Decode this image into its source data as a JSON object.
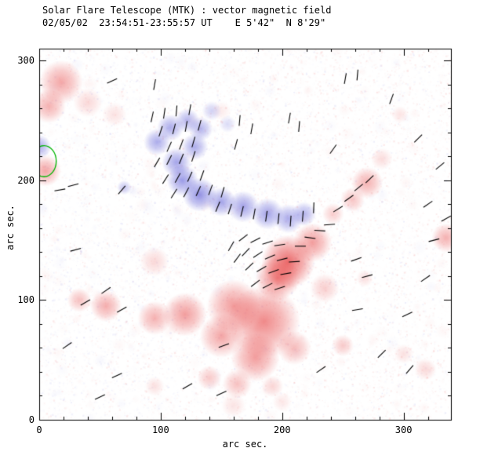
{
  "chart_data": {
    "type": "heatmap",
    "title": "Solar Flare Telescope (MTK) : vector magnetic field",
    "subtitle": "02/05/02  23:54:51-23:55:57 UT    E 5'42\"  N 8'29\"",
    "xlabel": "arc sec.",
    "ylabel": "arc sec.",
    "xlim": [
      0,
      339
    ],
    "ylim": [
      0,
      310
    ],
    "x_ticks": [
      0,
      100,
      200,
      300
    ],
    "y_ticks": [
      0,
      100,
      200,
      300
    ],
    "minor_step": 20,
    "grid": false,
    "legend": "none",
    "description": "Line-of-sight magnetogram: red blobs = positive polarity, blue blobs = negative polarity, short black segments = transverse field vectors, green contour near left edge",
    "colors": {
      "positive": "#e63c3c",
      "negative": "#5a5ad7",
      "vector": "#000000",
      "contour": "#00b400",
      "frame": "#000000",
      "background": "#ffffff"
    },
    "noise": {
      "seed": 42,
      "count": 15000,
      "red_base": 0.45,
      "red_slope": 0.35,
      "max_alpha": 0.12,
      "patches": 450,
      "patch_min_r": 3,
      "patch_max_r": 10,
      "patch_alpha": 0.05
    },
    "vector_length_arcsec": 9,
    "green_contour": {
      "cx": 4,
      "cy": 216,
      "rx": 10,
      "ry": 13
    },
    "positive_blobs": [
      [
        18,
        282,
        18,
        0.45
      ],
      [
        8,
        262,
        14,
        0.4
      ],
      [
        40,
        265,
        12,
        0.2
      ],
      [
        62,
        255,
        10,
        0.15
      ],
      [
        5,
        208,
        13,
        0.45
      ],
      [
        270,
        198,
        13,
        0.4
      ],
      [
        258,
        184,
        10,
        0.3
      ],
      [
        242,
        172,
        9,
        0.25
      ],
      [
        282,
        218,
        9,
        0.18
      ],
      [
        335,
        152,
        12,
        0.4
      ],
      [
        297,
        255,
        7,
        0.14
      ],
      [
        185,
        82,
        30,
        0.6
      ],
      [
        205,
        132,
        22,
        0.75
      ],
      [
        196,
        118,
        18,
        0.6
      ],
      [
        225,
        148,
        16,
        0.5
      ],
      [
        160,
        95,
        22,
        0.5
      ],
      [
        150,
        70,
        18,
        0.45
      ],
      [
        178,
        52,
        20,
        0.5
      ],
      [
        120,
        88,
        18,
        0.5
      ],
      [
        95,
        85,
        14,
        0.4
      ],
      [
        55,
        95,
        13,
        0.42
      ],
      [
        33,
        100,
        10,
        0.32
      ],
      [
        210,
        60,
        14,
        0.35
      ],
      [
        235,
        110,
        12,
        0.25
      ],
      [
        250,
        62,
        9,
        0.28
      ],
      [
        140,
        35,
        10,
        0.28
      ],
      [
        163,
        30,
        12,
        0.32
      ],
      [
        192,
        28,
        9,
        0.22
      ],
      [
        95,
        28,
        8,
        0.16
      ],
      [
        300,
        55,
        8,
        0.16
      ],
      [
        318,
        42,
        9,
        0.2
      ],
      [
        268,
        118,
        7,
        0.16
      ],
      [
        95,
        132,
        12,
        0.2
      ],
      [
        160,
        12,
        10,
        0.14
      ],
      [
        200,
        15,
        8,
        0.12
      ],
      [
        150,
        258,
        8,
        0.1
      ]
    ],
    "negative_blobs": [
      [
        0,
        228,
        10,
        0.5
      ],
      [
        70,
        194,
        6,
        0.35
      ],
      [
        97,
        232,
        11,
        0.5
      ],
      [
        108,
        244,
        11,
        0.5
      ],
      [
        122,
        250,
        10,
        0.45
      ],
      [
        133,
        243,
        10,
        0.45
      ],
      [
        128,
        228,
        11,
        0.5
      ],
      [
        113,
        215,
        12,
        0.55
      ],
      [
        118,
        200,
        13,
        0.6
      ],
      [
        132,
        188,
        14,
        0.65
      ],
      [
        150,
        182,
        12,
        0.55
      ],
      [
        168,
        178,
        13,
        0.55
      ],
      [
        188,
        172,
        13,
        0.55
      ],
      [
        205,
        168,
        12,
        0.5
      ],
      [
        218,
        172,
        10,
        0.45
      ],
      [
        142,
        258,
        8,
        0.28
      ],
      [
        155,
        247,
        7,
        0.22
      ]
    ],
    "vectors": [
      [
        93,
        253,
        78
      ],
      [
        103,
        256,
        82
      ],
      [
        113,
        258,
        85
      ],
      [
        124,
        259,
        80
      ],
      [
        100,
        241,
        72
      ],
      [
        111,
        243,
        76
      ],
      [
        121,
        245,
        80
      ],
      [
        132,
        246,
        75
      ],
      [
        107,
        228,
        66
      ],
      [
        117,
        230,
        70
      ],
      [
        127,
        232,
        74
      ],
      [
        97,
        215,
        60
      ],
      [
        107,
        217,
        64
      ],
      [
        117,
        218,
        68
      ],
      [
        127,
        220,
        72
      ],
      [
        104,
        201,
        58
      ],
      [
        114,
        202,
        62
      ],
      [
        124,
        203,
        66
      ],
      [
        134,
        204,
        70
      ],
      [
        111,
        189,
        58
      ],
      [
        121,
        190,
        62
      ],
      [
        131,
        191,
        66
      ],
      [
        141,
        192,
        70
      ],
      [
        151,
        190,
        74
      ],
      [
        68,
        192,
        50
      ],
      [
        162,
        230,
        75
      ],
      [
        165,
        250,
        85
      ],
      [
        175,
        243,
        80
      ],
      [
        206,
        252,
        80
      ],
      [
        214,
        245,
        85
      ],
      [
        147,
        178,
        68
      ],
      [
        157,
        176,
        72
      ],
      [
        167,
        174,
        76
      ],
      [
        177,
        172,
        80
      ],
      [
        187,
        170,
        82
      ],
      [
        197,
        168,
        84
      ],
      [
        207,
        166,
        86
      ],
      [
        217,
        170,
        86
      ],
      [
        226,
        177,
        88
      ],
      [
        168,
        152,
        38
      ],
      [
        178,
        150,
        28
      ],
      [
        188,
        148,
        18
      ],
      [
        198,
        146,
        8
      ],
      [
        170,
        140,
        48
      ],
      [
        180,
        138,
        34
      ],
      [
        190,
        136,
        24
      ],
      [
        200,
        134,
        14
      ],
      [
        210,
        132,
        4
      ],
      [
        173,
        128,
        44
      ],
      [
        183,
        126,
        30
      ],
      [
        193,
        124,
        20
      ],
      [
        203,
        122,
        10
      ],
      [
        178,
        114,
        38
      ],
      [
        188,
        112,
        28
      ],
      [
        198,
        110,
        18
      ],
      [
        163,
        135,
        54
      ],
      [
        158,
        145,
        60
      ],
      [
        215,
        145,
        0
      ],
      [
        223,
        152,
        352
      ],
      [
        231,
        158,
        356
      ],
      [
        239,
        163,
        4
      ],
      [
        246,
        176,
        32
      ],
      [
        255,
        185,
        36
      ],
      [
        263,
        194,
        40
      ],
      [
        272,
        201,
        44
      ],
      [
        60,
        283,
        25
      ],
      [
        95,
        280,
        80
      ],
      [
        252,
        285,
        80
      ],
      [
        262,
        288,
        85
      ],
      [
        290,
        268,
        70
      ],
      [
        312,
        235,
        45
      ],
      [
        330,
        212,
        40
      ],
      [
        320,
        180,
        35
      ],
      [
        335,
        168,
        30
      ],
      [
        325,
        150,
        15
      ],
      [
        318,
        118,
        35
      ],
      [
        303,
        88,
        25
      ],
      [
        282,
        55,
        45
      ],
      [
        305,
        42,
        50
      ],
      [
        262,
        92,
        10
      ],
      [
        270,
        120,
        15
      ],
      [
        261,
        134,
        20
      ],
      [
        242,
        226,
        55
      ],
      [
        28,
        196,
        15
      ],
      [
        17,
        192,
        10
      ],
      [
        30,
        142,
        15
      ],
      [
        55,
        108,
        35
      ],
      [
        38,
        98,
        30
      ],
      [
        68,
        92,
        30
      ],
      [
        23,
        62,
        35
      ],
      [
        64,
        37,
        25
      ],
      [
        50,
        19,
        25
      ],
      [
        122,
        28,
        30
      ],
      [
        150,
        22,
        25
      ],
      [
        232,
        42,
        35
      ],
      [
        152,
        62,
        20
      ]
    ]
  }
}
